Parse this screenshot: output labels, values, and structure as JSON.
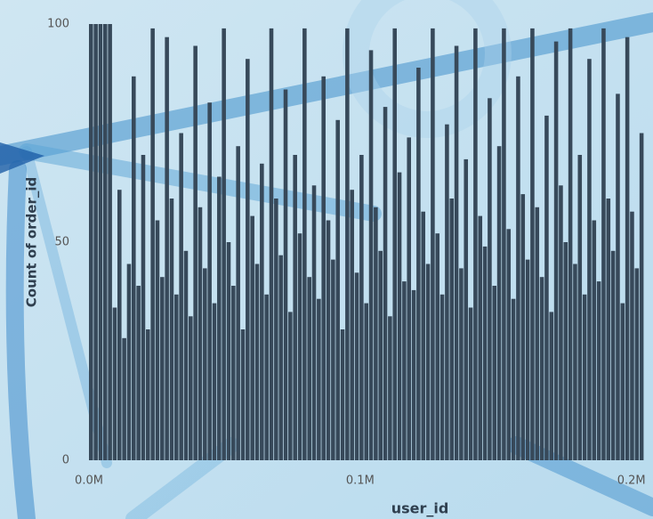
{
  "chart_data": {
    "type": "bar",
    "x_label": "user_id",
    "y_label": "Count of order_id",
    "x": [
      0,
      1750,
      3500,
      5250,
      7000,
      8750,
      10500,
      12250,
      14000,
      15750,
      17500,
      19250,
      21000,
      22750,
      24500,
      26250,
      28000,
      29750,
      31500,
      33250,
      35000,
      36750,
      38500,
      40250,
      42000,
      43750,
      45500,
      47250,
      49000,
      50750,
      52500,
      54250,
      56000,
      57750,
      59500,
      61250,
      63000,
      64750,
      66500,
      68250,
      70000,
      71750,
      73500,
      75250,
      77000,
      78750,
      80500,
      82250,
      84000,
      85750,
      87500,
      89250,
      91000,
      92750,
      94500,
      96250,
      98000,
      99750,
      101500,
      103250,
      105000,
      106750,
      108500,
      110250,
      112000,
      113750,
      115500,
      117250,
      119000,
      120750,
      122500,
      124250,
      126000,
      127750,
      129500,
      131250,
      133000,
      134750,
      136500,
      138250,
      140000,
      141750,
      143500,
      145250,
      147000,
      148750,
      150500,
      152250,
      154000,
      155750,
      157500,
      159250,
      161000,
      162750,
      164500,
      166250,
      168000,
      169750,
      171500,
      173250,
      175000,
      176750,
      178500,
      180250,
      182000,
      183750,
      185500,
      187250,
      189000,
      190750,
      192500,
      194250,
      196000,
      197750,
      199500,
      201250,
      203000
    ],
    "values": [
      100,
      100,
      100,
      100,
      100,
      35,
      62,
      28,
      45,
      88,
      40,
      70,
      30,
      99,
      55,
      42,
      97,
      60,
      38,
      75,
      48,
      33,
      95,
      58,
      44,
      82,
      36,
      65,
      99,
      50,
      40,
      72,
      30,
      92,
      56,
      45,
      68,
      38,
      99,
      60,
      47,
      85,
      34,
      70,
      52,
      99,
      42,
      63,
      37,
      88,
      55,
      46,
      78,
      30,
      99,
      62,
      43,
      70,
      36,
      94,
      58,
      48,
      81,
      33,
      99,
      66,
      41,
      74,
      39,
      90,
      57,
      45,
      99,
      52,
      38,
      77,
      60,
      95,
      44,
      69,
      35,
      99,
      56,
      49,
      83,
      40,
      72,
      99,
      53,
      37,
      88,
      61,
      46,
      99,
      58,
      42,
      79,
      34,
      96,
      63,
      50,
      99,
      45,
      70,
      38,
      92,
      55,
      41,
      99,
      60,
      48,
      84,
      36,
      97,
      57,
      44,
      75
    ],
    "color": "#37495a",
    "xlim": [
      0,
      206000
    ],
    "xticks": [
      {
        "value": 0,
        "label": "0.0M"
      },
      {
        "value": 100000,
        "label": "0.1M"
      },
      {
        "value": 200000,
        "label": "0.2M"
      }
    ],
    "ylim": [
      0,
      100
    ],
    "yticks": [
      0,
      50,
      100
    ]
  }
}
